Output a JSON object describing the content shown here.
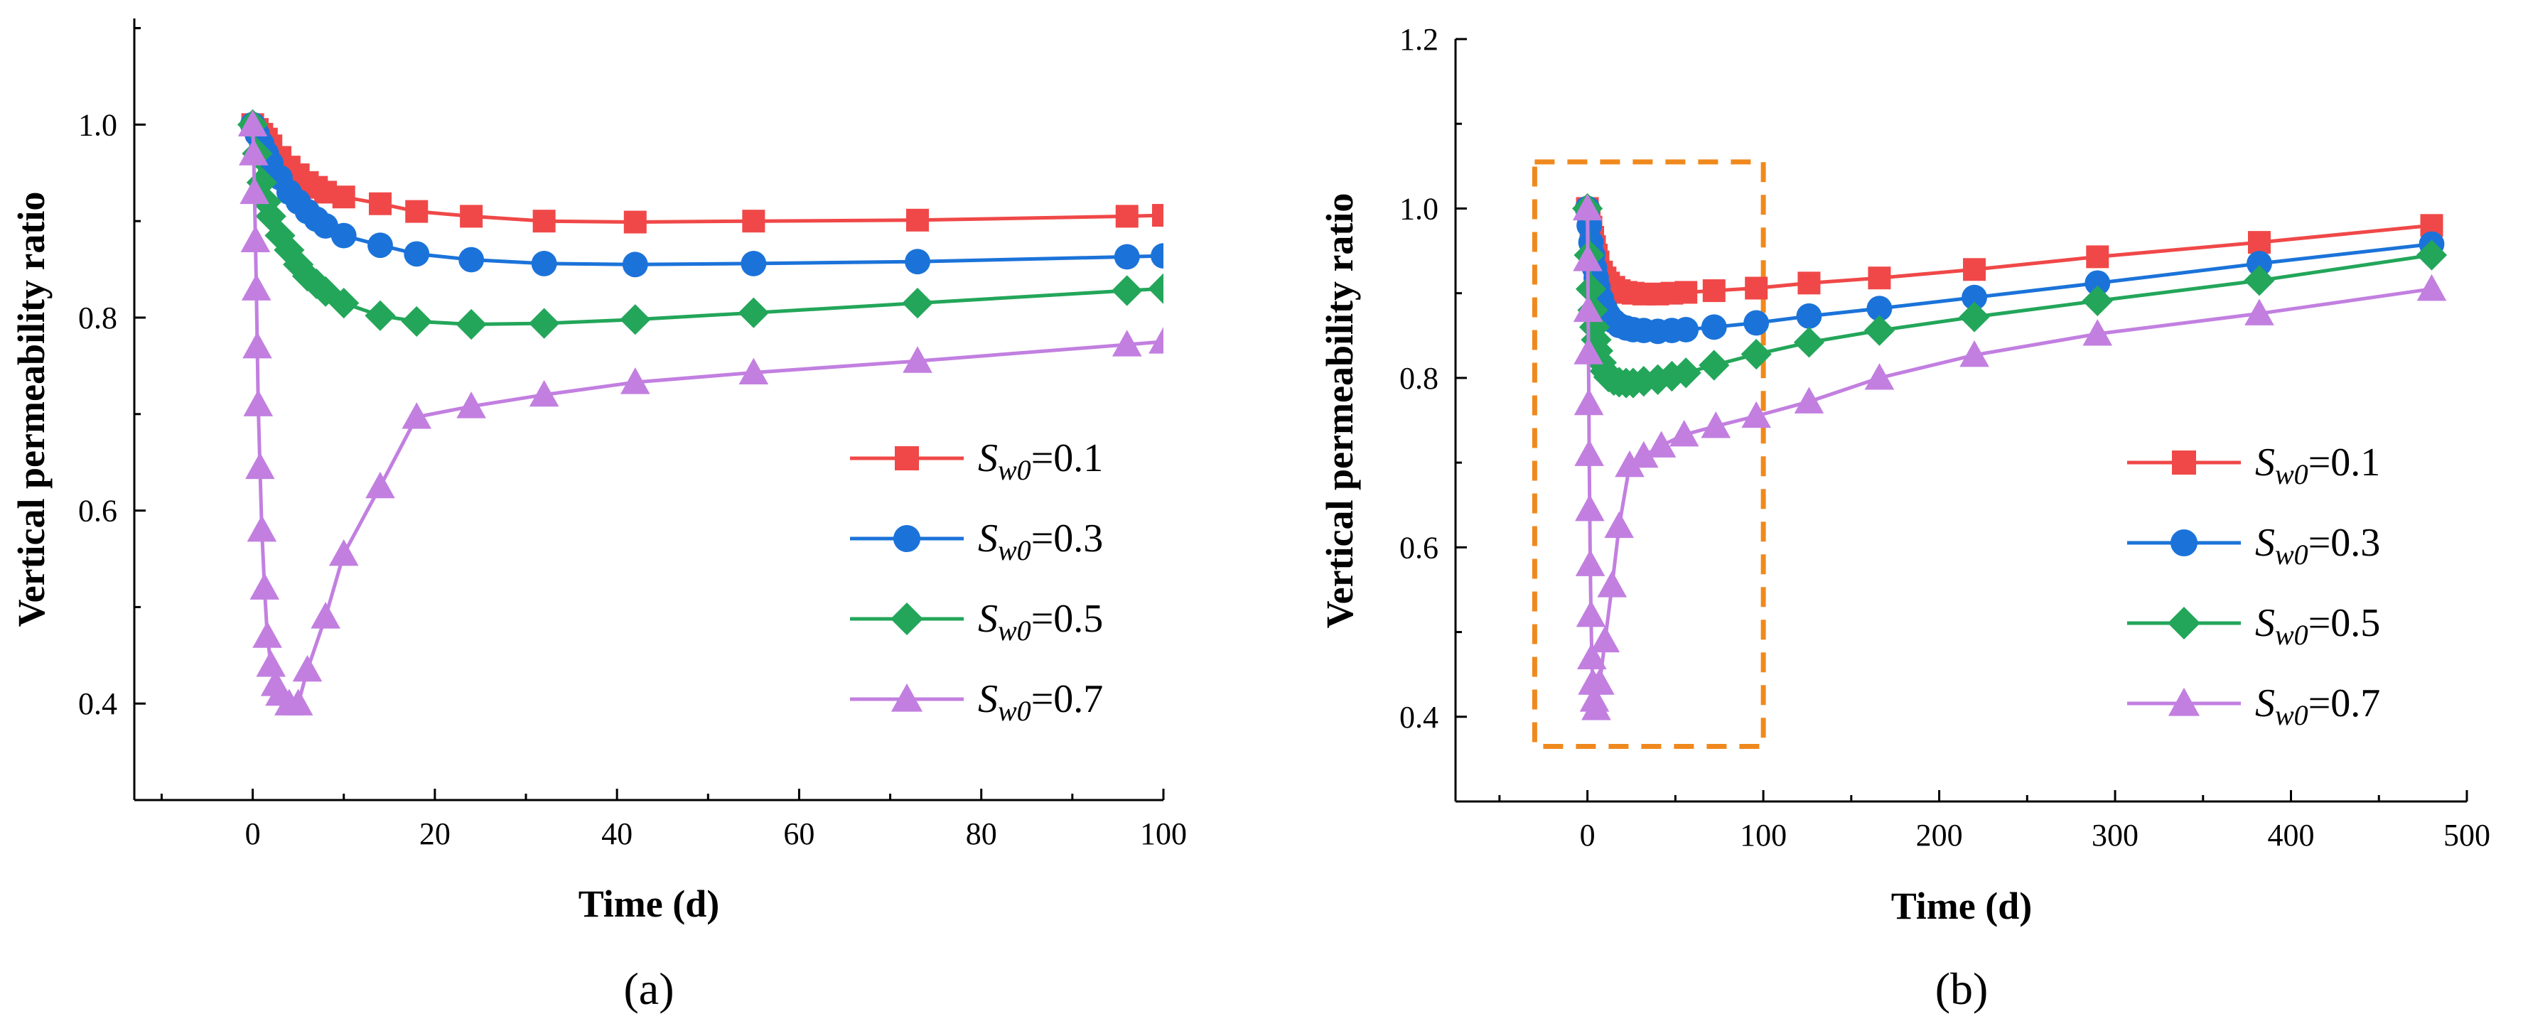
{
  "chart_data": [
    {
      "type": "line",
      "panel_label": "(a)",
      "xlabel": "Time (d)",
      "ylabel": "Vertical permeability ratio",
      "xlim": [
        -13,
        100
      ],
      "ylim": [
        0.3,
        1.11
      ],
      "xticks": [
        0,
        20,
        40,
        60,
        80,
        100
      ],
      "xtick_labels": [
        "0",
        "20",
        "40",
        "60",
        "80",
        "100"
      ],
      "yticks": [
        0.4,
        0.6,
        0.8,
        1.0
      ],
      "ytick_labels": [
        "0.4",
        "0.6",
        "0.8",
        "1.0"
      ],
      "legend_position": "right",
      "series": [
        {
          "name": "Sw0=0.1",
          "legend_base": "S",
          "legend_sub": "w0",
          "legend_value": "=0.1",
          "color": "#f04848",
          "marker": "square",
          "x": [
            0,
            0.5,
            1,
            1.5,
            2,
            3,
            4,
            5,
            6,
            7,
            8,
            10,
            14,
            18,
            24,
            32,
            42,
            55,
            73,
            96,
            100
          ],
          "y": [
            1.0,
            0.995,
            0.99,
            0.985,
            0.978,
            0.966,
            0.956,
            0.948,
            0.94,
            0.935,
            0.93,
            0.925,
            0.918,
            0.91,
            0.905,
            0.9,
            0.899,
            0.9,
            0.901,
            0.905,
            0.906
          ]
        },
        {
          "name": "Sw0=0.3",
          "legend_base": "S",
          "legend_sub": "w0",
          "legend_value": "=0.3",
          "color": "#1b73d9",
          "marker": "circle",
          "x": [
            0,
            0.5,
            1,
            1.5,
            2,
            3,
            4,
            5,
            6,
            7,
            8,
            10,
            14,
            18,
            24,
            32,
            42,
            55,
            73,
            96,
            100
          ],
          "y": [
            1.0,
            0.99,
            0.98,
            0.97,
            0.96,
            0.945,
            0.93,
            0.92,
            0.91,
            0.902,
            0.895,
            0.885,
            0.875,
            0.866,
            0.86,
            0.856,
            0.855,
            0.856,
            0.858,
            0.863,
            0.864
          ]
        },
        {
          "name": "Sw0=0.5",
          "legend_base": "S",
          "legend_sub": "w0",
          "legend_value": "=0.5",
          "color": "#23a65a",
          "marker": "diamond",
          "x": [
            0,
            0.5,
            1,
            1.5,
            2,
            3,
            4,
            5,
            6,
            7,
            8,
            10,
            14,
            18,
            24,
            32,
            42,
            55,
            73,
            96,
            100
          ],
          "y": [
            1.0,
            0.97,
            0.94,
            0.92,
            0.905,
            0.885,
            0.87,
            0.855,
            0.843,
            0.835,
            0.827,
            0.815,
            0.802,
            0.796,
            0.793,
            0.794,
            0.798,
            0.805,
            0.815,
            0.828,
            0.83
          ]
        },
        {
          "name": "Sw0=0.7",
          "legend_base": "S",
          "legend_sub": "w0",
          "legend_value": "=0.7",
          "color": "#c27fe0",
          "marker": "triangle",
          "x": [
            0,
            0.1,
            0.2,
            0.3,
            0.4,
            0.5,
            0.6,
            0.8,
            1,
            1.3,
            1.6,
            2,
            2.5,
            3,
            4,
            5,
            6,
            8,
            10,
            14,
            18,
            24,
            32,
            42,
            55,
            73,
            96,
            100
          ],
          "y": [
            1.0,
            0.97,
            0.93,
            0.88,
            0.83,
            0.77,
            0.71,
            0.645,
            0.58,
            0.52,
            0.47,
            0.44,
            0.42,
            0.41,
            0.4,
            0.4,
            0.435,
            0.49,
            0.555,
            0.625,
            0.697,
            0.708,
            0.72,
            0.733,
            0.743,
            0.755,
            0.772,
            0.775
          ]
        }
      ]
    },
    {
      "type": "line",
      "panel_label": "(b)",
      "xlabel": "Time (d)",
      "ylabel": "Vertical permeability ratio",
      "xlim": [
        -75,
        500
      ],
      "ylim": [
        0.3,
        1.2
      ],
      "xticks": [
        0,
        100,
        200,
        300,
        400,
        500
      ],
      "xtick_labels": [
        "0",
        "100",
        "200",
        "300",
        "400",
        "500"
      ],
      "yticks": [
        0.4,
        0.6,
        0.8,
        1.0,
        1.2
      ],
      "ytick_labels": [
        "0.4",
        "0.6",
        "0.8",
        "1.0",
        "1.2"
      ],
      "legend_position": "right",
      "annotation": {
        "type": "dashed-box",
        "color": "#f0891d",
        "x0": -30,
        "x1": 100,
        "y0": 0.365,
        "y1": 1.055
      },
      "series": [
        {
          "name": "Sw0=0.1",
          "legend_base": "S",
          "legend_sub": "w0",
          "legend_value": "=0.1",
          "color": "#f04848",
          "marker": "square",
          "x": [
            0,
            1,
            2,
            3,
            4,
            5,
            6,
            8,
            10,
            12,
            15,
            18,
            22,
            26,
            32,
            40,
            48,
            56,
            72,
            96,
            126,
            166,
            220,
            290,
            382,
            480
          ],
          "y": [
            1.0,
            0.99,
            0.978,
            0.966,
            0.955,
            0.945,
            0.937,
            0.925,
            0.918,
            0.912,
            0.907,
            0.903,
            0.901,
            0.9,
            0.899,
            0.899,
            0.9,
            0.901,
            0.903,
            0.906,
            0.912,
            0.918,
            0.928,
            0.943,
            0.96,
            0.98
          ]
        },
        {
          "name": "Sw0=0.3",
          "legend_base": "S",
          "legend_sub": "w0",
          "legend_value": "=0.3",
          "color": "#1b73d9",
          "marker": "circle",
          "x": [
            0,
            1,
            2,
            3,
            4,
            5,
            6,
            8,
            10,
            12,
            15,
            18,
            22,
            26,
            32,
            40,
            48,
            56,
            72,
            96,
            126,
            166,
            220,
            290,
            382,
            480
          ],
          "y": [
            1.0,
            0.98,
            0.96,
            0.945,
            0.93,
            0.918,
            0.907,
            0.893,
            0.882,
            0.874,
            0.867,
            0.862,
            0.859,
            0.857,
            0.856,
            0.855,
            0.856,
            0.857,
            0.86,
            0.865,
            0.873,
            0.882,
            0.895,
            0.912,
            0.935,
            0.958
          ]
        },
        {
          "name": "Sw0=0.5",
          "legend_base": "S",
          "legend_sub": "w0",
          "legend_value": "=0.5",
          "color": "#23a65a",
          "marker": "diamond",
          "x": [
            0,
            1,
            2,
            3,
            4,
            5,
            6,
            8,
            10,
            12,
            15,
            18,
            22,
            26,
            32,
            40,
            48,
            56,
            72,
            96,
            126,
            166,
            220,
            290,
            382,
            480
          ],
          "y": [
            1.0,
            0.945,
            0.905,
            0.88,
            0.86,
            0.845,
            0.832,
            0.818,
            0.808,
            0.801,
            0.797,
            0.795,
            0.794,
            0.794,
            0.796,
            0.798,
            0.802,
            0.806,
            0.815,
            0.828,
            0.842,
            0.856,
            0.872,
            0.891,
            0.915,
            0.945
          ]
        },
        {
          "name": "Sw0=0.7",
          "legend_base": "S",
          "legend_sub": "w0",
          "legend_value": "=0.7",
          "color": "#c27fe0",
          "marker": "triangle",
          "x": [
            0,
            0.2,
            0.4,
            0.6,
            0.8,
            1,
            1.3,
            1.6,
            2,
            2.5,
            3,
            4,
            5,
            7,
            10,
            14,
            18,
            24,
            32,
            42,
            55,
            73,
            96,
            126,
            166,
            220,
            290,
            382,
            480
          ],
          "y": [
            1.0,
            0.94,
            0.88,
            0.83,
            0.77,
            0.71,
            0.645,
            0.58,
            0.52,
            0.47,
            0.44,
            0.42,
            0.41,
            0.44,
            0.49,
            0.555,
            0.625,
            0.697,
            0.708,
            0.72,
            0.733,
            0.743,
            0.755,
            0.772,
            0.8,
            0.827,
            0.852,
            0.876,
            0.905
          ]
        }
      ]
    }
  ]
}
